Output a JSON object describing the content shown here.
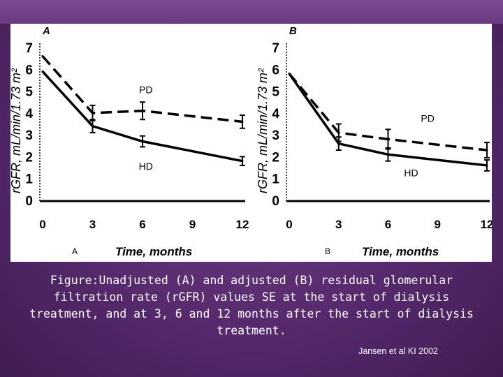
{
  "caption": "Figure:Unadjusted (A) and adjusted (B) residual glomerular filtration rate (rGFR) values SE at the start of dialysis treatment, and at 3, 6 and 12 months after the start of dialysis treatment.",
  "citation": "Jansen et al KI 2002",
  "colors": {
    "background": "#562a6d",
    "panel": "#ffffff",
    "ink": "#000000"
  },
  "chart_data": [
    {
      "type": "line",
      "panel_label": "A",
      "corner_label": "A",
      "xlabel": "Time, months",
      "ylabel": "rGFR, mL/min/1.73 m²",
      "x": [
        0,
        3,
        6,
        12
      ],
      "xlim": [
        0,
        12
      ],
      "ylim": [
        0,
        7
      ],
      "xticks": [
        "0",
        "3",
        "6",
        "9",
        "12"
      ],
      "yticks": [
        "0",
        "1",
        "2",
        "3",
        "4",
        "5",
        "6",
        "7"
      ],
      "series": [
        {
          "name": "PD",
          "style": "dashed",
          "values": [
            6.6,
            4.0,
            4.1,
            3.6
          ],
          "errors": [
            0,
            0.35,
            0.4,
            0.3
          ]
        },
        {
          "name": "HD",
          "style": "solid",
          "values": [
            5.9,
            3.4,
            2.7,
            1.8
          ],
          "errors": [
            0,
            0.3,
            0.25,
            0.2
          ]
        }
      ],
      "annotations": [
        {
          "text": "PD",
          "x": 6.2,
          "y": 4.9
        },
        {
          "text": "HD",
          "x": 6.2,
          "y": 1.4
        }
      ]
    },
    {
      "type": "line",
      "panel_label": "B",
      "corner_label": "B",
      "xlabel": "Time, months",
      "ylabel": "rGFR, mL/min/1.73 m²",
      "x": [
        0,
        3,
        6,
        12
      ],
      "xlim": [
        0,
        12
      ],
      "ylim": [
        0,
        7
      ],
      "xticks": [
        "0",
        "3",
        "6",
        "9",
        "12"
      ],
      "yticks": [
        "0",
        "1",
        "2",
        "3",
        "4",
        "5",
        "6",
        "7"
      ],
      "series": [
        {
          "name": "PD",
          "style": "dashed",
          "values": [
            5.8,
            3.1,
            2.8,
            2.3
          ],
          "errors": [
            0,
            0.4,
            0.45,
            0.35
          ]
        },
        {
          "name": "HD",
          "style": "solid",
          "values": [
            5.8,
            2.6,
            2.1,
            1.6
          ],
          "errors": [
            0,
            0.3,
            0.3,
            0.25
          ]
        }
      ],
      "annotations": [
        {
          "text": "PD",
          "x": 8.4,
          "y": 3.6
        },
        {
          "text": "HD",
          "x": 7.4,
          "y": 1.1
        }
      ]
    }
  ]
}
